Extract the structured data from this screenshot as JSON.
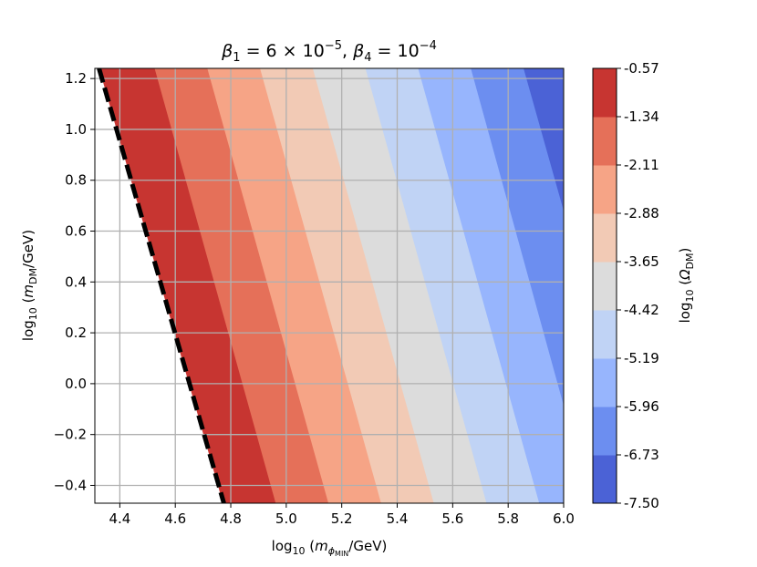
{
  "chart_data": {
    "type": "contourf",
    "title": {
      "beta1_symbol": "β",
      "beta1_sub": "1",
      "beta1_mant": "6 × 10",
      "beta1_exp": "−5",
      "sep": ",",
      "beta4_symbol": "β",
      "beta4_sub": "4",
      "beta4_mant": "10",
      "beta4_exp": "−4"
    },
    "xlabel": {
      "prefix": "log",
      "base": "10",
      "open": " (",
      "var": "m",
      "sub": "ϕ",
      "subsub": "MIN",
      "unit": "/GeV)"
    },
    "ylabel": {
      "prefix": "log",
      "base": "10",
      "open": " (",
      "var": "m",
      "sub": "DM",
      "unit": "/GeV)"
    },
    "colorbar_label": {
      "prefix": "log",
      "base": "10",
      "open": " (",
      "var": "Ω",
      "sub": "DM",
      "close": ")"
    },
    "xlim": [
      4.31,
      6.0
    ],
    "ylim": [
      -0.47,
      1.24
    ],
    "xticks": [
      4.4,
      4.6,
      4.8,
      5.0,
      5.2,
      5.4,
      5.6,
      5.8,
      6.0
    ],
    "xtick_labels": [
      "4.4",
      "4.6",
      "4.8",
      "5.0",
      "5.2",
      "5.4",
      "5.6",
      "5.8",
      "6.0"
    ],
    "yticks": [
      -0.4,
      -0.2,
      0.0,
      0.2,
      0.4,
      0.6,
      0.8,
      1.0,
      1.2
    ],
    "ytick_labels": [
      "−0.4",
      "−0.2",
      "0.0",
      "0.2",
      "0.4",
      "0.6",
      "0.8",
      "1.0",
      "1.2"
    ],
    "grid": true,
    "boundary_line": {
      "style": "dashed",
      "color": "#000000",
      "points": [
        [
          4.325,
          1.24
        ],
        [
          4.775,
          -0.47
        ]
      ]
    },
    "contour_boundaries": [
      {
        "top_x": 4.325,
        "bottom_x": 4.775
      },
      {
        "top_x": 4.525,
        "bottom_x": 4.965
      },
      {
        "top_x": 4.715,
        "bottom_x": 5.155
      },
      {
        "top_x": 4.905,
        "bottom_x": 5.345
      },
      {
        "top_x": 5.095,
        "bottom_x": 5.535
      },
      {
        "top_x": 5.285,
        "bottom_x": 5.725
      },
      {
        "top_x": 5.475,
        "bottom_x": 5.915
      },
      {
        "top_x": 5.665,
        "bottom_x": 6.1
      },
      {
        "top_x": 5.855,
        "bottom_x": 6.3
      }
    ],
    "levels": [
      -7.5,
      -6.73,
      -5.96,
      -5.19,
      -4.42,
      -3.65,
      -2.88,
      -2.11,
      -1.34,
      -0.57
    ],
    "level_labels": [
      "-7.50",
      "-6.73",
      "-5.96",
      "-5.19",
      "-4.42",
      "-3.65",
      "-2.88",
      "-2.11",
      "-1.34",
      "-0.57"
    ],
    "level_colors": [
      "#4b62d6",
      "#6c8ef0",
      "#97b5fd",
      "#c0d3f5",
      "#dcdcdc",
      "#f2cab5",
      "#f6a486",
      "#e57059",
      "#c73531"
    ],
    "band_order_left_to_right": [
      "#c73531",
      "#e57059",
      "#f6a486",
      "#f2cab5",
      "#dcdcdc",
      "#c0d3f5",
      "#97b5fd",
      "#6c8ef0",
      "#4b62d6"
    ]
  }
}
